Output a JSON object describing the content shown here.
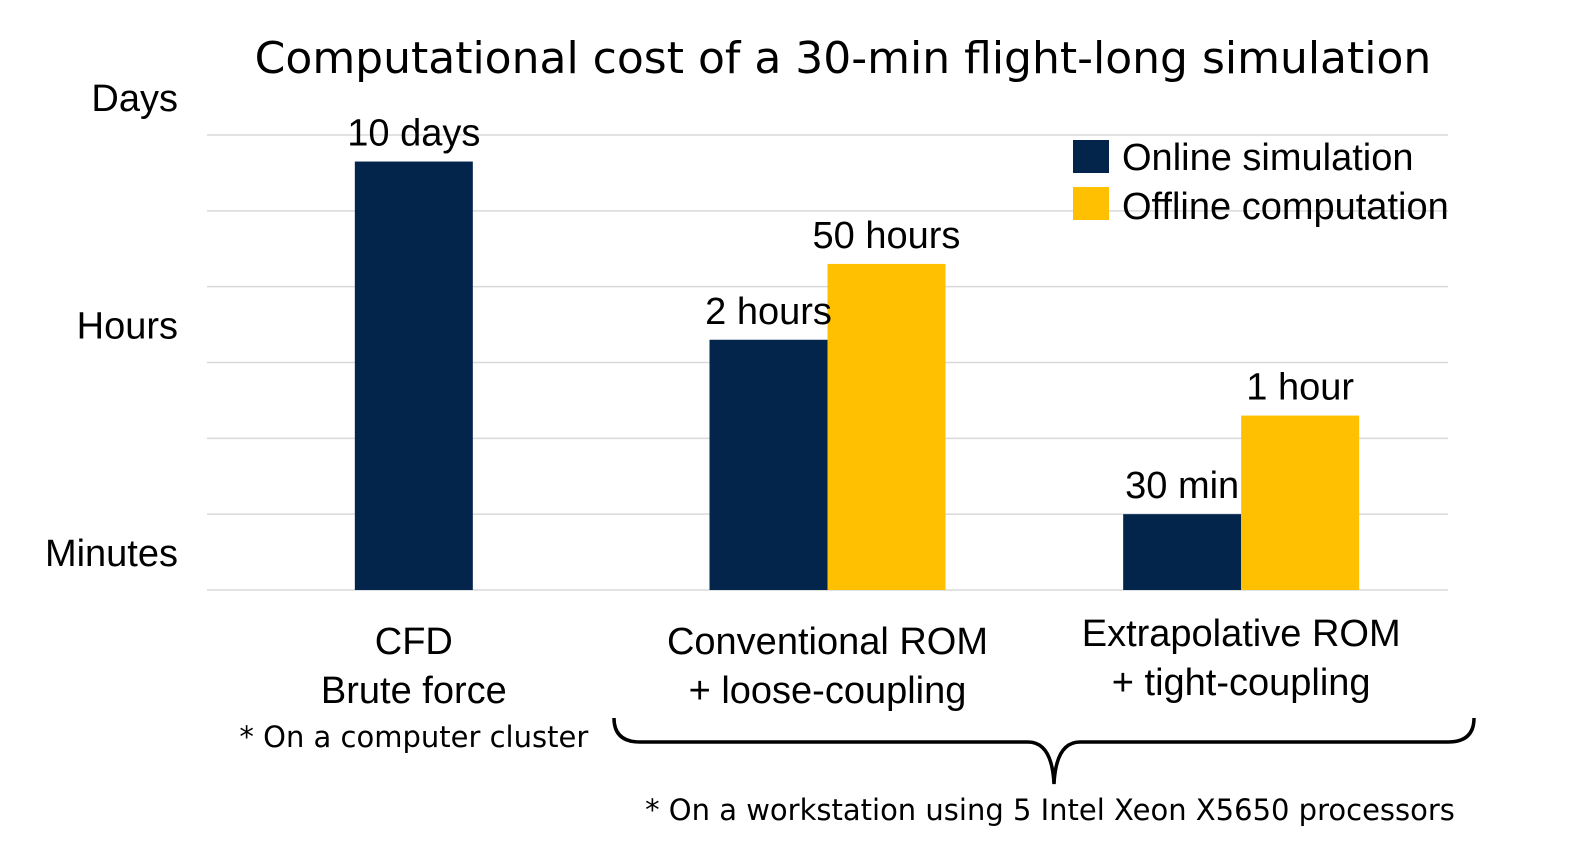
{
  "chart_data": {
    "type": "bar",
    "title": "Computational cost of a 30-min flight-long simulation",
    "y_scale": "log-like categorical (Minutes / Hours / Days)",
    "y_tick_labels": [
      "Minutes",
      "Hours",
      "Days"
    ],
    "y_tick_levels": [
      0,
      3,
      6
    ],
    "ylim": [
      0,
      6
    ],
    "grid": true,
    "legend_position": "top-right",
    "categories": [
      {
        "lines": [
          "CFD",
          "Brute force"
        ],
        "note": "* On a computer cluster"
      },
      {
        "lines": [
          "Conventional ROM",
          "+ loose-coupling"
        ]
      },
      {
        "lines": [
          "Extrapolative ROM",
          "+ tight-coupling"
        ]
      }
    ],
    "series": [
      {
        "name": "Online simulation",
        "color": "#03254c",
        "values": [
          5.65,
          3.3,
          1.0
        ],
        "data_labels": [
          "10 days",
          "2 hours",
          "30 min"
        ]
      },
      {
        "name": "Offline computation",
        "color": "#fec000",
        "values": [
          null,
          4.3,
          2.3
        ],
        "data_labels": [
          "",
          "50 hours",
          "1 hour"
        ]
      }
    ],
    "brace_note": "* On a workstation using 5 Intel Xeon X5650 processors"
  }
}
